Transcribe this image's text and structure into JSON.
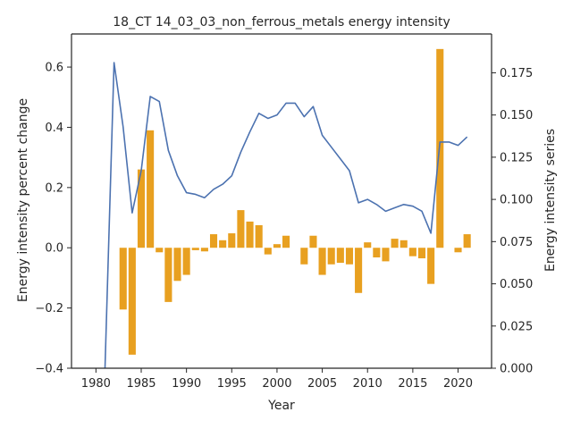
{
  "chart_data": {
    "type": "bar+line",
    "title": "18_CT 14_03_03_non_ferrous_metals energy intensity",
    "xlabel": "Year",
    "ylabel_left": "Energy intensity percent change",
    "ylabel_right": "Energy intensity series",
    "xlim": [
      1977.3,
      2023.7
    ],
    "ylim_left": [
      -0.4,
      0.71
    ],
    "ylim_right": [
      0.0,
      0.198
    ],
    "x_ticks": [
      1980,
      1985,
      1990,
      1995,
      2000,
      2005,
      2010,
      2015,
      2020
    ],
    "y_left_ticks": [
      -0.4,
      -0.2,
      0.0,
      0.2,
      0.4,
      0.6
    ],
    "y_left_tick_labels": [
      "−0.4",
      "−0.2",
      "0.0",
      "0.2",
      "0.4",
      "0.6"
    ],
    "y_right_ticks": [
      0.0,
      0.025,
      0.05,
      0.075,
      0.1,
      0.125,
      0.15,
      0.175
    ],
    "y_right_tick_labels": [
      "0.000",
      "0.025",
      "0.050",
      "0.075",
      "0.100",
      "0.125",
      "0.150",
      "0.175"
    ],
    "grid": false,
    "bar_color": "#e8a020",
    "line_color": "#4c72b0",
    "bars": {
      "name": "Energy intensity percent change",
      "x": [
        1982,
        1983,
        1984,
        1985,
        1986,
        1987,
        1988,
        1989,
        1990,
        1991,
        1992,
        1993,
        1994,
        1995,
        1996,
        1997,
        1998,
        1999,
        2000,
        2001,
        2002,
        2003,
        2004,
        2005,
        2006,
        2007,
        2008,
        2009,
        2010,
        2011,
        2012,
        2013,
        2014,
        2015,
        2016,
        2017,
        2018,
        2019,
        2020,
        2021
      ],
      "values": [
        0.0,
        -0.205,
        -0.355,
        0.26,
        0.39,
        -0.015,
        -0.18,
        -0.11,
        -0.09,
        -0.008,
        -0.012,
        0.045,
        0.025,
        0.048,
        0.125,
        0.087,
        0.075,
        -0.022,
        0.012,
        0.04,
        0.0,
        -0.055,
        0.04,
        -0.09,
        -0.055,
        -0.05,
        -0.055,
        -0.15,
        0.018,
        -0.032,
        -0.045,
        0.03,
        0.025,
        -0.028,
        -0.035,
        -0.12,
        0.66,
        0.0,
        -0.015,
        0.045
      ]
    },
    "line": {
      "name": "Energy intensity series",
      "x": [
        1981,
        1982,
        1983,
        1984,
        1985,
        1986,
        1987,
        1988,
        1989,
        1990,
        1991,
        1992,
        1993,
        1994,
        1995,
        1996,
        1997,
        1998,
        1999,
        2000,
        2001,
        2002,
        2003,
        2004,
        2005,
        2006,
        2007,
        2008,
        2009,
        2010,
        2011,
        2012,
        2013,
        2014,
        2015,
        2016,
        2017,
        2018,
        2019,
        2020,
        2021
      ],
      "values": [
        0.0,
        0.181,
        0.143,
        0.092,
        0.117,
        0.161,
        0.158,
        0.129,
        0.114,
        0.104,
        0.103,
        0.101,
        0.106,
        0.109,
        0.114,
        0.128,
        0.14,
        0.151,
        0.148,
        0.15,
        0.157,
        0.157,
        0.149,
        0.155,
        0.138,
        0.131,
        0.124,
        0.117,
        0.098,
        0.1,
        0.097,
        0.093,
        0.095,
        0.097,
        0.096,
        0.093,
        0.08,
        0.134,
        0.134,
        0.132,
        0.137
      ]
    }
  }
}
